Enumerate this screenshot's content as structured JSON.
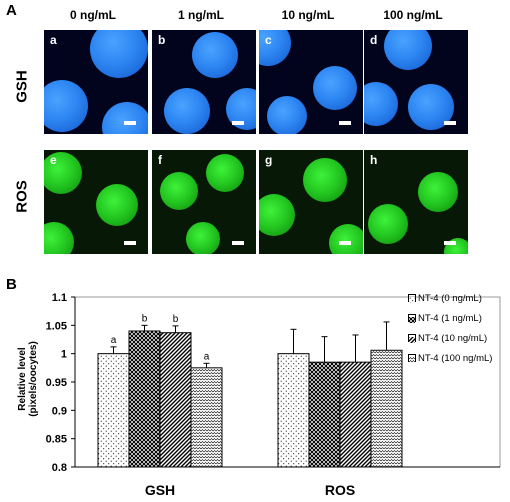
{
  "panel_a_label": "A",
  "panel_b_label": "B",
  "columns": [
    "0 ng/mL",
    "1 ng/mL",
    "10 ng/mL",
    "100 ng/mL"
  ],
  "rows": [
    "GSH",
    "ROS"
  ],
  "micrographs": {
    "gsh": [
      "a",
      "b",
      "c",
      "d"
    ],
    "ros": [
      "e",
      "f",
      "g",
      "h"
    ]
  },
  "colors": {
    "gsh_cells": "#2d86f2",
    "ros_cells": "#22c41f"
  },
  "chart_data": {
    "type": "bar",
    "categories": [
      "GSH",
      "ROS"
    ],
    "ylabel": "Relative level\n(pixels/oocytes)",
    "ylim": [
      0.8,
      1.1
    ],
    "yticks": [
      "0.8",
      "0.85",
      "0.9",
      "0.95",
      "1",
      "1.05",
      "1.1"
    ],
    "series": [
      {
        "name": "NT-4 (0 ng/mL)",
        "values": [
          1.0,
          1.0
        ],
        "errors": [
          0.012,
          0.043
        ],
        "letters": [
          "a",
          ""
        ]
      },
      {
        "name": "NT-4 (1 ng/mL)",
        "values": [
          1.04,
          0.985
        ],
        "errors": [
          0.01,
          0.045
        ],
        "letters": [
          "b",
          ""
        ]
      },
      {
        "name": "NT-4 (10 ng/mL)",
        "values": [
          1.037,
          0.985
        ],
        "errors": [
          0.012,
          0.048
        ],
        "letters": [
          "b",
          ""
        ]
      },
      {
        "name": "NT-4 (100 ng/mL)",
        "values": [
          0.975,
          1.006
        ],
        "errors": [
          0.008,
          0.05
        ],
        "letters": [
          "a",
          ""
        ]
      }
    ],
    "legend_position": "right"
  }
}
